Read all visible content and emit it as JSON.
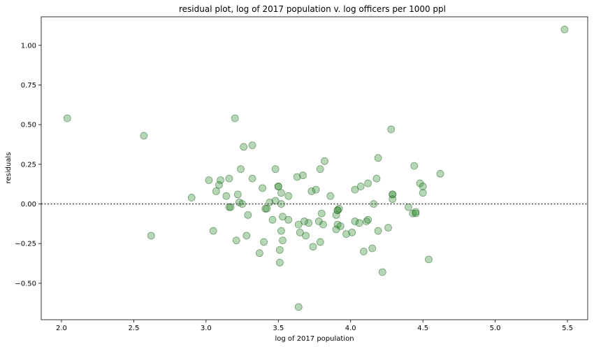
{
  "chart_data": {
    "type": "scatter",
    "title": "residual plot, log of 2017 population v. log officers per 1000 ppl",
    "xlabel": "log of 2017 population",
    "ylabel": "residuals",
    "xlim": [
      1.86,
      5.64
    ],
    "ylim": [
      -0.73,
      1.18
    ],
    "xticks": [
      2.0,
      2.5,
      3.0,
      3.5,
      4.0,
      4.5,
      5.0,
      5.5
    ],
    "xtick_labels": [
      "2.0",
      "2.5",
      "3.0",
      "3.5",
      "4.0",
      "4.5",
      "5.0",
      "5.5"
    ],
    "yticks": [
      -0.5,
      -0.25,
      0.0,
      0.25,
      0.5,
      0.75,
      1.0
    ],
    "ytick_labels": [
      "−0.50",
      "−0.25",
      "0.00",
      "0.25",
      "0.50",
      "0.75",
      "1.00"
    ],
    "reference_line_y": 0.0,
    "marker_color": "#2e8b2e",
    "points": [
      [
        2.04,
        0.54
      ],
      [
        2.57,
        0.43
      ],
      [
        2.62,
        -0.2
      ],
      [
        2.9,
        0.04
      ],
      [
        3.02,
        0.15
      ],
      [
        3.05,
        -0.17
      ],
      [
        3.07,
        0.08
      ],
      [
        3.09,
        0.12
      ],
      [
        3.1,
        0.15
      ],
      [
        3.14,
        0.05
      ],
      [
        3.16,
        0.16
      ],
      [
        3.16,
        -0.02
      ],
      [
        3.17,
        -0.02
      ],
      [
        3.2,
        0.54
      ],
      [
        3.21,
        -0.23
      ],
      [
        3.22,
        0.06
      ],
      [
        3.23,
        0.01
      ],
      [
        3.24,
        0.22
      ],
      [
        3.25,
        0.0
      ],
      [
        3.26,
        0.36
      ],
      [
        3.28,
        -0.2
      ],
      [
        3.29,
        -0.07
      ],
      [
        3.32,
        0.37
      ],
      [
        3.32,
        0.16
      ],
      [
        3.37,
        -0.31
      ],
      [
        3.39,
        0.1
      ],
      [
        3.4,
        -0.24
      ],
      [
        3.41,
        -0.03
      ],
      [
        3.42,
        -0.03
      ],
      [
        3.44,
        0.01
      ],
      [
        3.46,
        -0.1
      ],
      [
        3.48,
        0.22
      ],
      [
        3.48,
        0.02
      ],
      [
        3.5,
        0.11
      ],
      [
        3.5,
        0.11
      ],
      [
        3.51,
        -0.29
      ],
      [
        3.51,
        -0.37
      ],
      [
        3.52,
        0.07
      ],
      [
        3.52,
        -0.17
      ],
      [
        3.52,
        0.0
      ],
      [
        3.53,
        -0.08
      ],
      [
        3.53,
        -0.23
      ],
      [
        3.57,
        0.05
      ],
      [
        3.57,
        -0.1
      ],
      [
        3.63,
        0.17
      ],
      [
        3.64,
        -0.65
      ],
      [
        3.64,
        -0.13
      ],
      [
        3.65,
        -0.18
      ],
      [
        3.67,
        0.18
      ],
      [
        3.68,
        -0.11
      ],
      [
        3.69,
        -0.2
      ],
      [
        3.71,
        -0.12
      ],
      [
        3.73,
        0.08
      ],
      [
        3.74,
        -0.27
      ],
      [
        3.76,
        0.09
      ],
      [
        3.78,
        -0.11
      ],
      [
        3.79,
        -0.24
      ],
      [
        3.79,
        0.22
      ],
      [
        3.8,
        -0.06
      ],
      [
        3.81,
        -0.13
      ],
      [
        3.82,
        0.27
      ],
      [
        3.86,
        0.05
      ],
      [
        3.9,
        -0.16
      ],
      [
        3.9,
        -0.07
      ],
      [
        3.91,
        -0.04
      ],
      [
        3.91,
        -0.04
      ],
      [
        3.91,
        -0.13
      ],
      [
        3.92,
        -0.03
      ],
      [
        3.93,
        -0.14
      ],
      [
        3.97,
        -0.19
      ],
      [
        4.01,
        -0.18
      ],
      [
        4.03,
        -0.11
      ],
      [
        4.03,
        0.09
      ],
      [
        4.06,
        -0.12
      ],
      [
        4.07,
        0.11
      ],
      [
        4.09,
        -0.3
      ],
      [
        4.11,
        -0.11
      ],
      [
        4.12,
        0.13
      ],
      [
        4.12,
        -0.1
      ],
      [
        4.15,
        -0.28
      ],
      [
        4.16,
        0.0
      ],
      [
        4.18,
        0.16
      ],
      [
        4.19,
        0.29
      ],
      [
        4.19,
        -0.17
      ],
      [
        4.22,
        -0.43
      ],
      [
        4.26,
        -0.15
      ],
      [
        4.28,
        0.47
      ],
      [
        4.29,
        0.06
      ],
      [
        4.29,
        0.06
      ],
      [
        4.29,
        0.03
      ],
      [
        4.4,
        -0.02
      ],
      [
        4.43,
        -0.06
      ],
      [
        4.44,
        0.24
      ],
      [
        4.45,
        -0.06
      ],
      [
        4.45,
        -0.05
      ],
      [
        4.48,
        0.13
      ],
      [
        4.5,
        0.11
      ],
      [
        4.5,
        0.07
      ],
      [
        4.54,
        -0.35
      ],
      [
        4.62,
        0.19
      ],
      [
        5.48,
        1.1
      ]
    ]
  }
}
